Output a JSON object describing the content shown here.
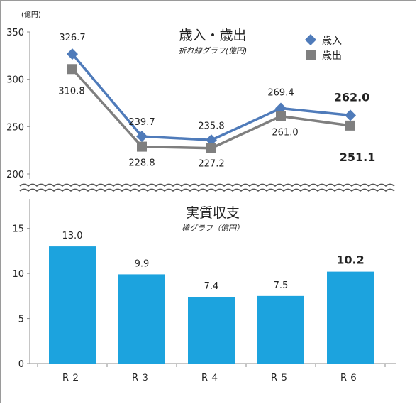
{
  "chart_data": [
    {
      "type": "line",
      "title": "歳入・歳出",
      "subtitle": "折れ線グラフ(億円)",
      "unit_label": "(億円)",
      "categories": [
        "R２",
        "R３",
        "R４",
        "R５",
        "R６"
      ],
      "series": [
        {
          "name": "歳入",
          "values": [
            326.7,
            239.7,
            235.8,
            269.4,
            262.0
          ],
          "labels": [
            "326.7",
            "239.7",
            "235.8",
            "269.4",
            "262.0"
          ],
          "color": "#4F7BBA",
          "marker": "diamond"
        },
        {
          "name": "歳出",
          "values": [
            310.8,
            228.8,
            227.2,
            261.0,
            251.1
          ],
          "labels": [
            "310.8",
            "228.8",
            "227.2",
            "261.0",
            "251.1"
          ],
          "color": "#7F7F7F",
          "marker": "square"
        }
      ],
      "ylim": [
        200,
        350
      ],
      "yticks": [
        "200",
        "250",
        "300",
        "350"
      ],
      "legend": "top-right"
    },
    {
      "type": "bar",
      "title": "実質収支",
      "subtitle": "棒グラフ（億円）",
      "categories": [
        "R２",
        "R３",
        "R４",
        "R５",
        "R６"
      ],
      "values": [
        13.0,
        9.9,
        7.4,
        7.5,
        10.2
      ],
      "labels": [
        "13.0",
        "9.9",
        "7.4",
        "7.5",
        "10.2"
      ],
      "color": "#1CA3DE",
      "ylim": [
        0,
        17.5
      ],
      "yticks": [
        "0",
        "5",
        "10",
        "15"
      ]
    }
  ]
}
